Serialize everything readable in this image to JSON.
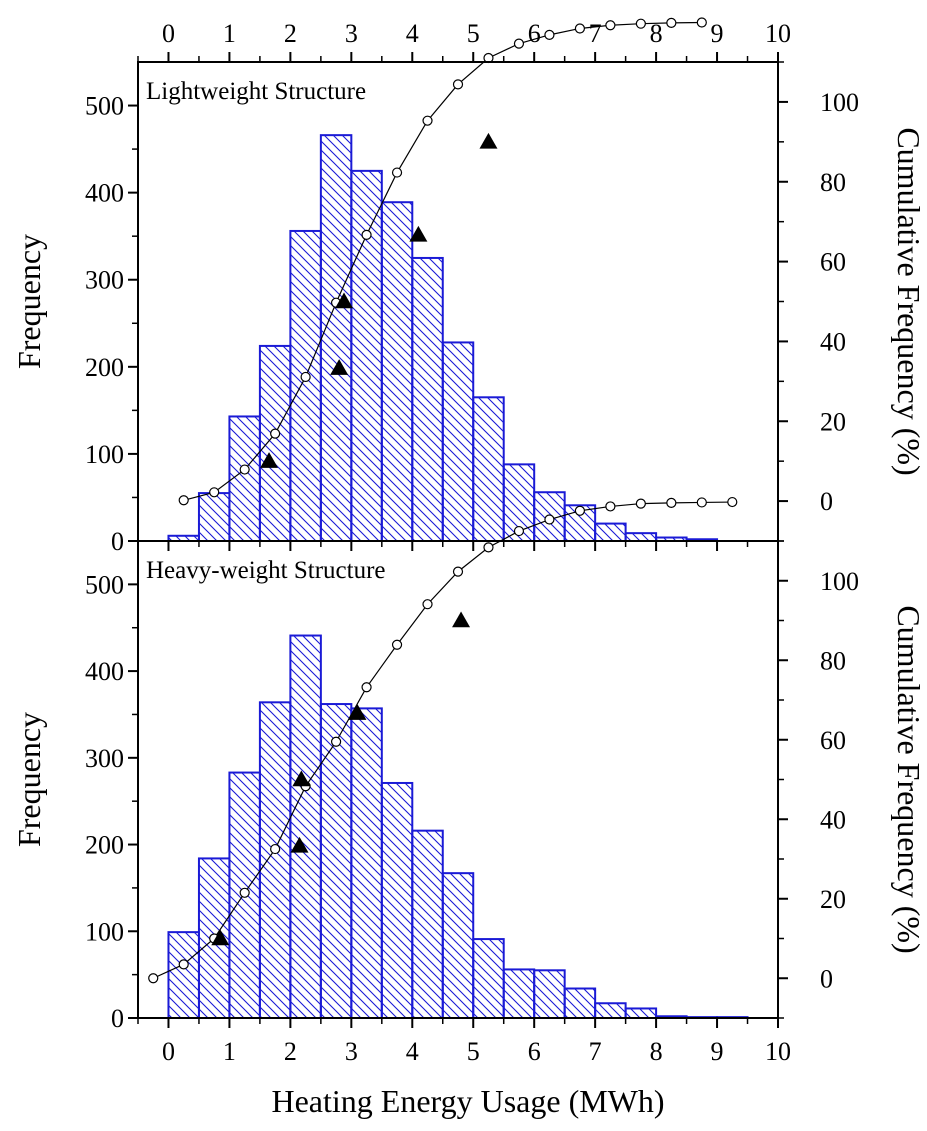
{
  "chart_data": [
    {
      "type": "bar",
      "title": "Lightweight Structure",
      "xlabel": "Heating Energy Usage (MWh)",
      "ylabel": "Frequency",
      "y2label": "Cumulative Frequency (%)",
      "xlim": [
        -0.5,
        10
      ],
      "ylim": [
        0,
        550
      ],
      "y2lim": [
        -10,
        110
      ],
      "x_ticks": [
        0,
        1,
        2,
        3,
        4,
        5,
        6,
        7,
        8,
        9,
        10
      ],
      "y_ticks": [
        0,
        100,
        200,
        300,
        400,
        500
      ],
      "y2_ticks": [
        0,
        20,
        40,
        60,
        80,
        100
      ],
      "bin_width": 0.5,
      "bin_starts": [
        0,
        0.5,
        1,
        1.5,
        2,
        2.5,
        3,
        3.5,
        4,
        4.5,
        5,
        5.5,
        6,
        6.5,
        7,
        7.5,
        8,
        8.5
      ],
      "frequency": [
        6,
        55,
        143,
        224,
        356,
        466,
        425,
        389,
        325,
        228,
        165,
        88,
        56,
        41,
        20,
        9,
        4,
        2
      ],
      "cumulative_x": [
        0.25,
        0.75,
        1.25,
        1.75,
        2.25,
        2.75,
        3.25,
        3.75,
        4.25,
        4.75,
        5.25,
        5.75,
        6.25,
        6.75,
        7.25,
        7.75,
        8.25,
        8.75
      ],
      "cumulative_pct": [
        0.2,
        2.2,
        7.9,
        16.9,
        31.1,
        49.7,
        66.7,
        82.3,
        95.3,
        104.4,
        111.0,
        114.6,
        116.8,
        118.4,
        119.2,
        119.6,
        119.8,
        119.9
      ],
      "markers_x": [
        1.65,
        2.8,
        2.88,
        4.1,
        5.25
      ],
      "markers_pct": [
        10,
        33.3,
        50,
        66.7,
        90
      ]
    },
    {
      "type": "bar",
      "title": "Heavy-weight Structure",
      "xlabel": "Heating Energy Usage (MWh)",
      "ylabel": "Frequency",
      "y2label": "Cumulative Frequency (%)",
      "xlim": [
        -0.5,
        10
      ],
      "ylim": [
        0,
        550
      ],
      "y2lim": [
        -10,
        110
      ],
      "x_ticks": [
        0,
        1,
        2,
        3,
        4,
        5,
        6,
        7,
        8,
        9,
        10
      ],
      "y_ticks": [
        0,
        100,
        200,
        300,
        400,
        500
      ],
      "y2_ticks": [
        0,
        20,
        40,
        60,
        80,
        100
      ],
      "bin_width": 0.5,
      "bin_starts": [
        0,
        0.5,
        1,
        1.5,
        2,
        2.5,
        3,
        3.5,
        4,
        4.5,
        5,
        5.5,
        6,
        6.5,
        7,
        7.5,
        8,
        8.5,
        9
      ],
      "frequency": [
        99,
        184,
        283,
        364,
        441,
        362,
        357,
        271,
        216,
        167,
        91,
        56,
        55,
        34,
        17,
        11,
        2,
        1,
        1
      ],
      "cumulative_x": [
        -0.25,
        0.25,
        0.75,
        1.25,
        1.75,
        2.25,
        2.75,
        3.25,
        3.75,
        4.25,
        4.75,
        5.25,
        5.75,
        6.25,
        6.75,
        7.25,
        7.75,
        8.25,
        8.75,
        9.25
      ],
      "cumulative_pct": [
        0,
        3.5,
        10,
        21.5,
        32.5,
        48.3,
        59.5,
        73.2,
        83.9,
        94.1,
        102.3,
        108.4,
        112.5,
        115.4,
        117.6,
        118.7,
        119.4,
        119.6,
        119.7,
        119.8
      ],
      "markers_x": [
        0.85,
        2.15,
        2.18,
        3.1,
        4.8
      ],
      "markers_pct": [
        10,
        33.3,
        50,
        66.7,
        90
      ]
    }
  ]
}
